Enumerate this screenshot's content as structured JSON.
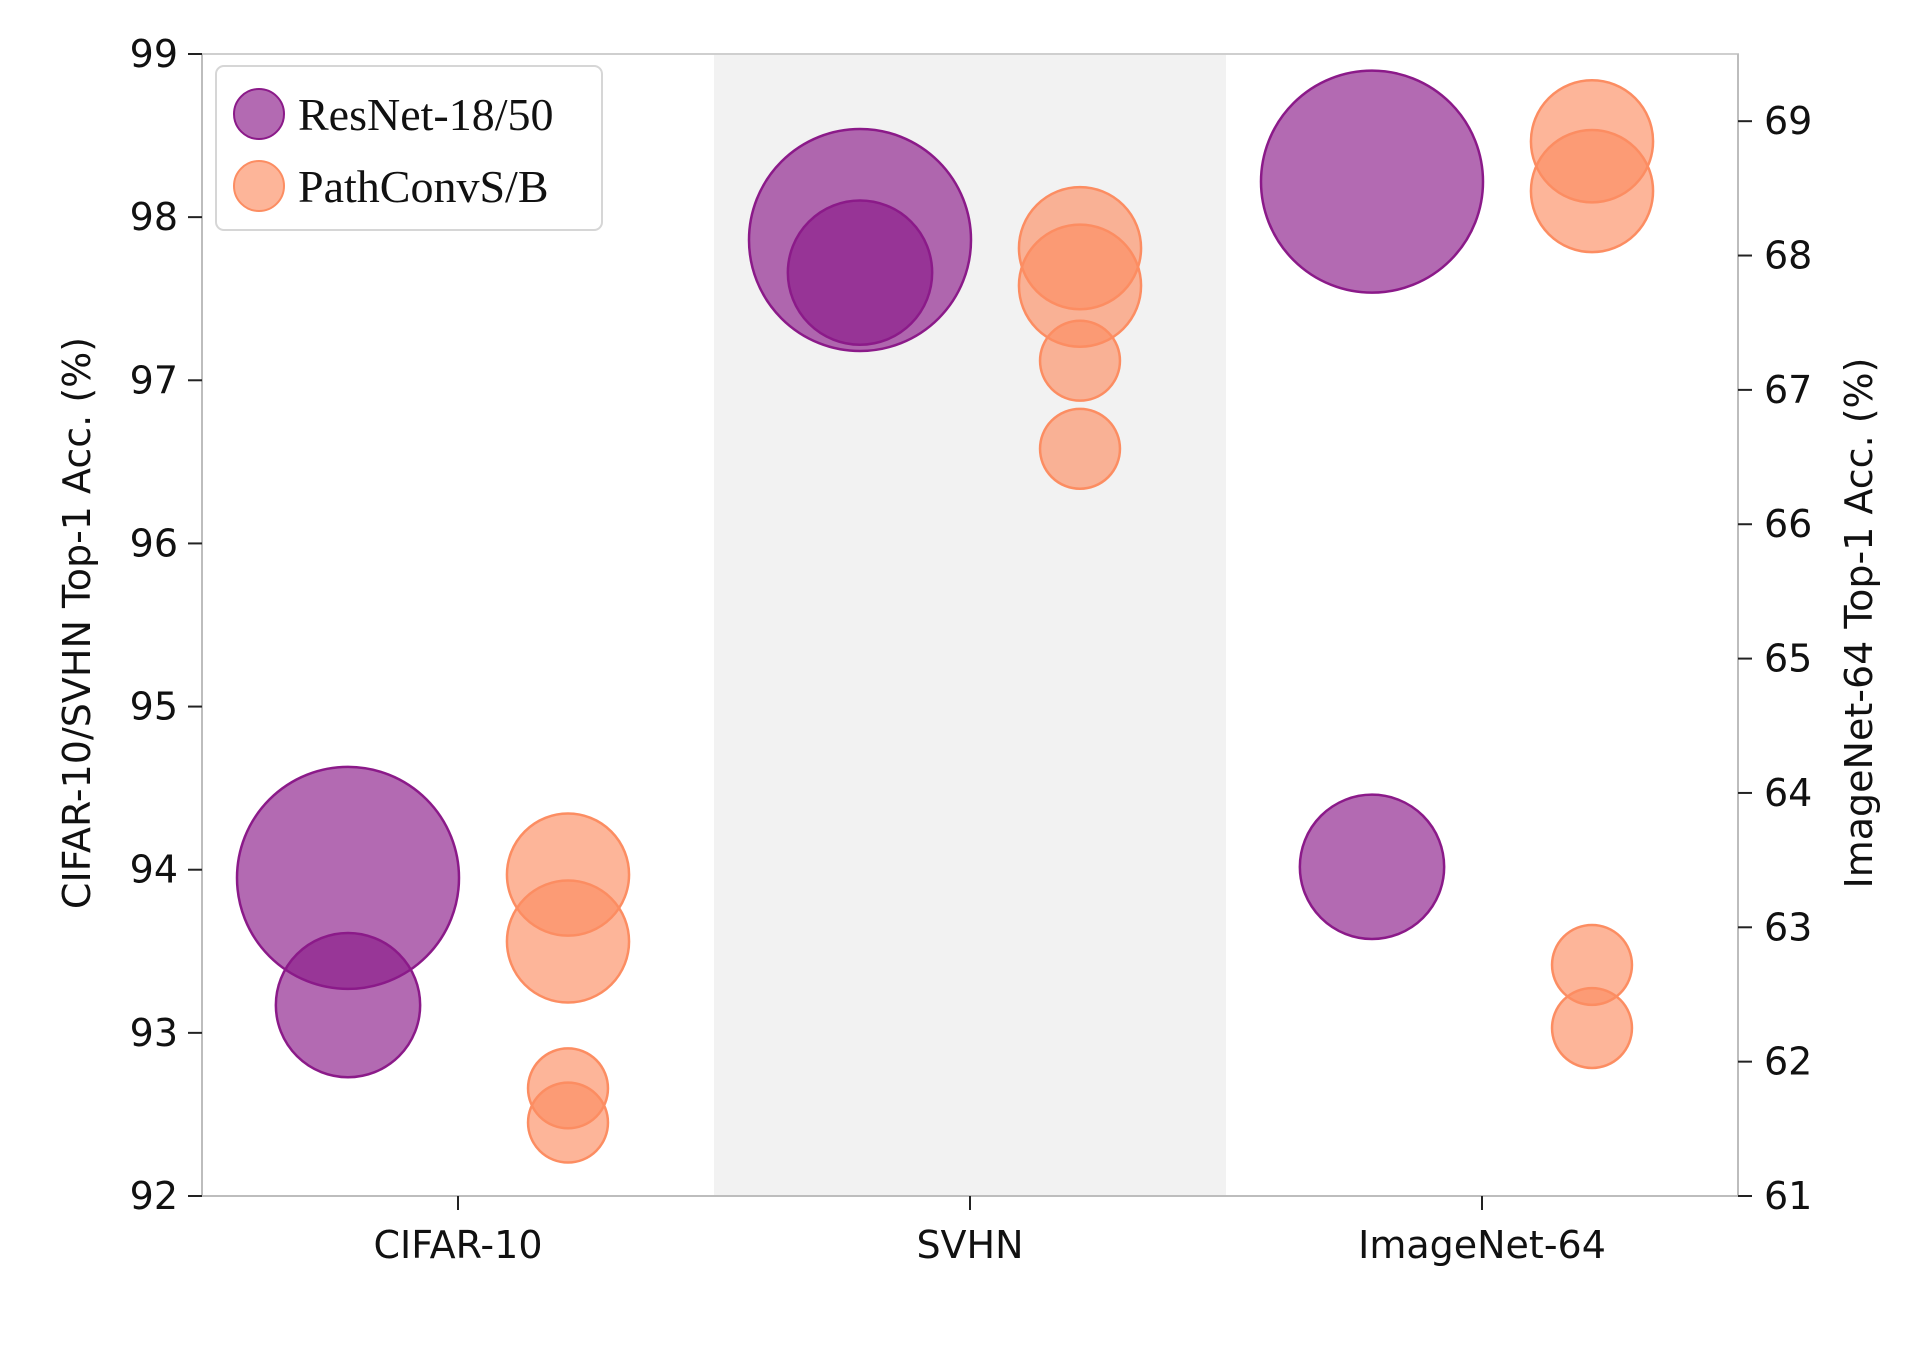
{
  "chart_data": {
    "type": "scatter",
    "categories": [
      "CIFAR-10",
      "SVHN",
      "ImageNet-64"
    ],
    "shaded_category": "SVHN",
    "ylabel_left": "CIFAR-10/SVHN Top-1 Acc. (%)",
    "ylabel_right": "ImageNet-64 Top-1 Acc. (%)",
    "ylim_left": [
      92,
      99
    ],
    "ylim_right": [
      61,
      69.5
    ],
    "yticks_left": [
      "92",
      "93",
      "94",
      "95",
      "96",
      "97",
      "98",
      "99"
    ],
    "yticks_right": [
      "61",
      "62",
      "63",
      "64",
      "65",
      "66",
      "67",
      "68",
      "69"
    ],
    "legend_position": "top-left",
    "series": [
      {
        "name": "ResNet-18/50",
        "color": "#8b1a89",
        "points": [
          {
            "category": "CIFAR-10",
            "axis": "left",
            "y": 93.95,
            "size": 1.0
          },
          {
            "category": "CIFAR-10",
            "axis": "left",
            "y": 93.17,
            "size": 0.65
          },
          {
            "category": "SVHN",
            "axis": "left",
            "y": 97.86,
            "size": 1.0
          },
          {
            "category": "SVHN",
            "axis": "left",
            "y": 97.66,
            "size": 0.65
          },
          {
            "category": "ImageNet-64",
            "axis": "right",
            "y": 68.55,
            "size": 1.0
          },
          {
            "category": "ImageNet-64",
            "axis": "right",
            "y": 63.45,
            "size": 0.65
          }
        ]
      },
      {
        "name": "PathConvS/B",
        "color": "#fc8d62",
        "points": [
          {
            "category": "CIFAR-10",
            "axis": "left",
            "y": 93.97,
            "size": 0.55
          },
          {
            "category": "CIFAR-10",
            "axis": "left",
            "y": 93.56,
            "size": 0.55
          },
          {
            "category": "CIFAR-10",
            "axis": "left",
            "y": 92.66,
            "size": 0.36
          },
          {
            "category": "CIFAR-10",
            "axis": "left",
            "y": 92.45,
            "size": 0.36
          },
          {
            "category": "SVHN",
            "axis": "left",
            "y": 97.81,
            "size": 0.55
          },
          {
            "category": "SVHN",
            "axis": "left",
            "y": 97.58,
            "size": 0.55
          },
          {
            "category": "SVHN",
            "axis": "left",
            "y": 97.12,
            "size": 0.36
          },
          {
            "category": "SVHN",
            "axis": "left",
            "y": 96.58,
            "size": 0.36
          },
          {
            "category": "ImageNet-64",
            "axis": "right",
            "y": 68.85,
            "size": 0.55
          },
          {
            "category": "ImageNet-64",
            "axis": "right",
            "y": 68.48,
            "size": 0.55
          },
          {
            "category": "ImageNet-64",
            "axis": "right",
            "y": 62.72,
            "size": 0.36
          },
          {
            "category": "ImageNet-64",
            "axis": "right",
            "y": 62.25,
            "size": 0.36
          }
        ]
      }
    ]
  }
}
